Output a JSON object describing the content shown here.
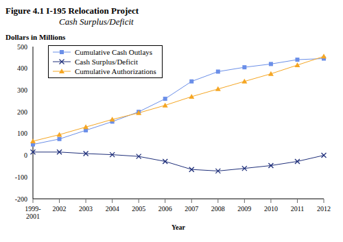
{
  "chart_data": {
    "type": "line",
    "title": "Figure 4.1 I-195 Relocation Project",
    "subtitle": "Cash Surplus/Deficit",
    "y_label": "Dollars in Millions",
    "x_label": "Year",
    "categories": [
      "1999-2001",
      "2002",
      "2003",
      "2004",
      "2005",
      "2006",
      "2007",
      "2008",
      "2009",
      "2010",
      "2011",
      "2012"
    ],
    "series": [
      {
        "name": "Cumulative Cash Outlays",
        "color": "#6b8fe8",
        "marker": "square",
        "values": [
          50,
          75,
          115,
          155,
          200,
          260,
          340,
          385,
          405,
          420,
          440,
          445
        ]
      },
      {
        "name": "Cash Surplus/Deficit",
        "color": "#1f2f7a",
        "marker": "x",
        "values": [
          15,
          15,
          8,
          3,
          -5,
          -28,
          -65,
          -72,
          -60,
          -47,
          -28,
          0
        ]
      },
      {
        "name": "Cumulative Authorizations",
        "color": "#f5a623",
        "marker": "triangle",
        "values": [
          65,
          95,
          130,
          165,
          195,
          230,
          270,
          305,
          340,
          375,
          415,
          455
        ]
      }
    ],
    "ylim": [
      -200,
      500
    ],
    "yticks": [
      -200,
      -100,
      0,
      100,
      200,
      300,
      400,
      500
    ],
    "grid": false,
    "legend": "upper left"
  }
}
